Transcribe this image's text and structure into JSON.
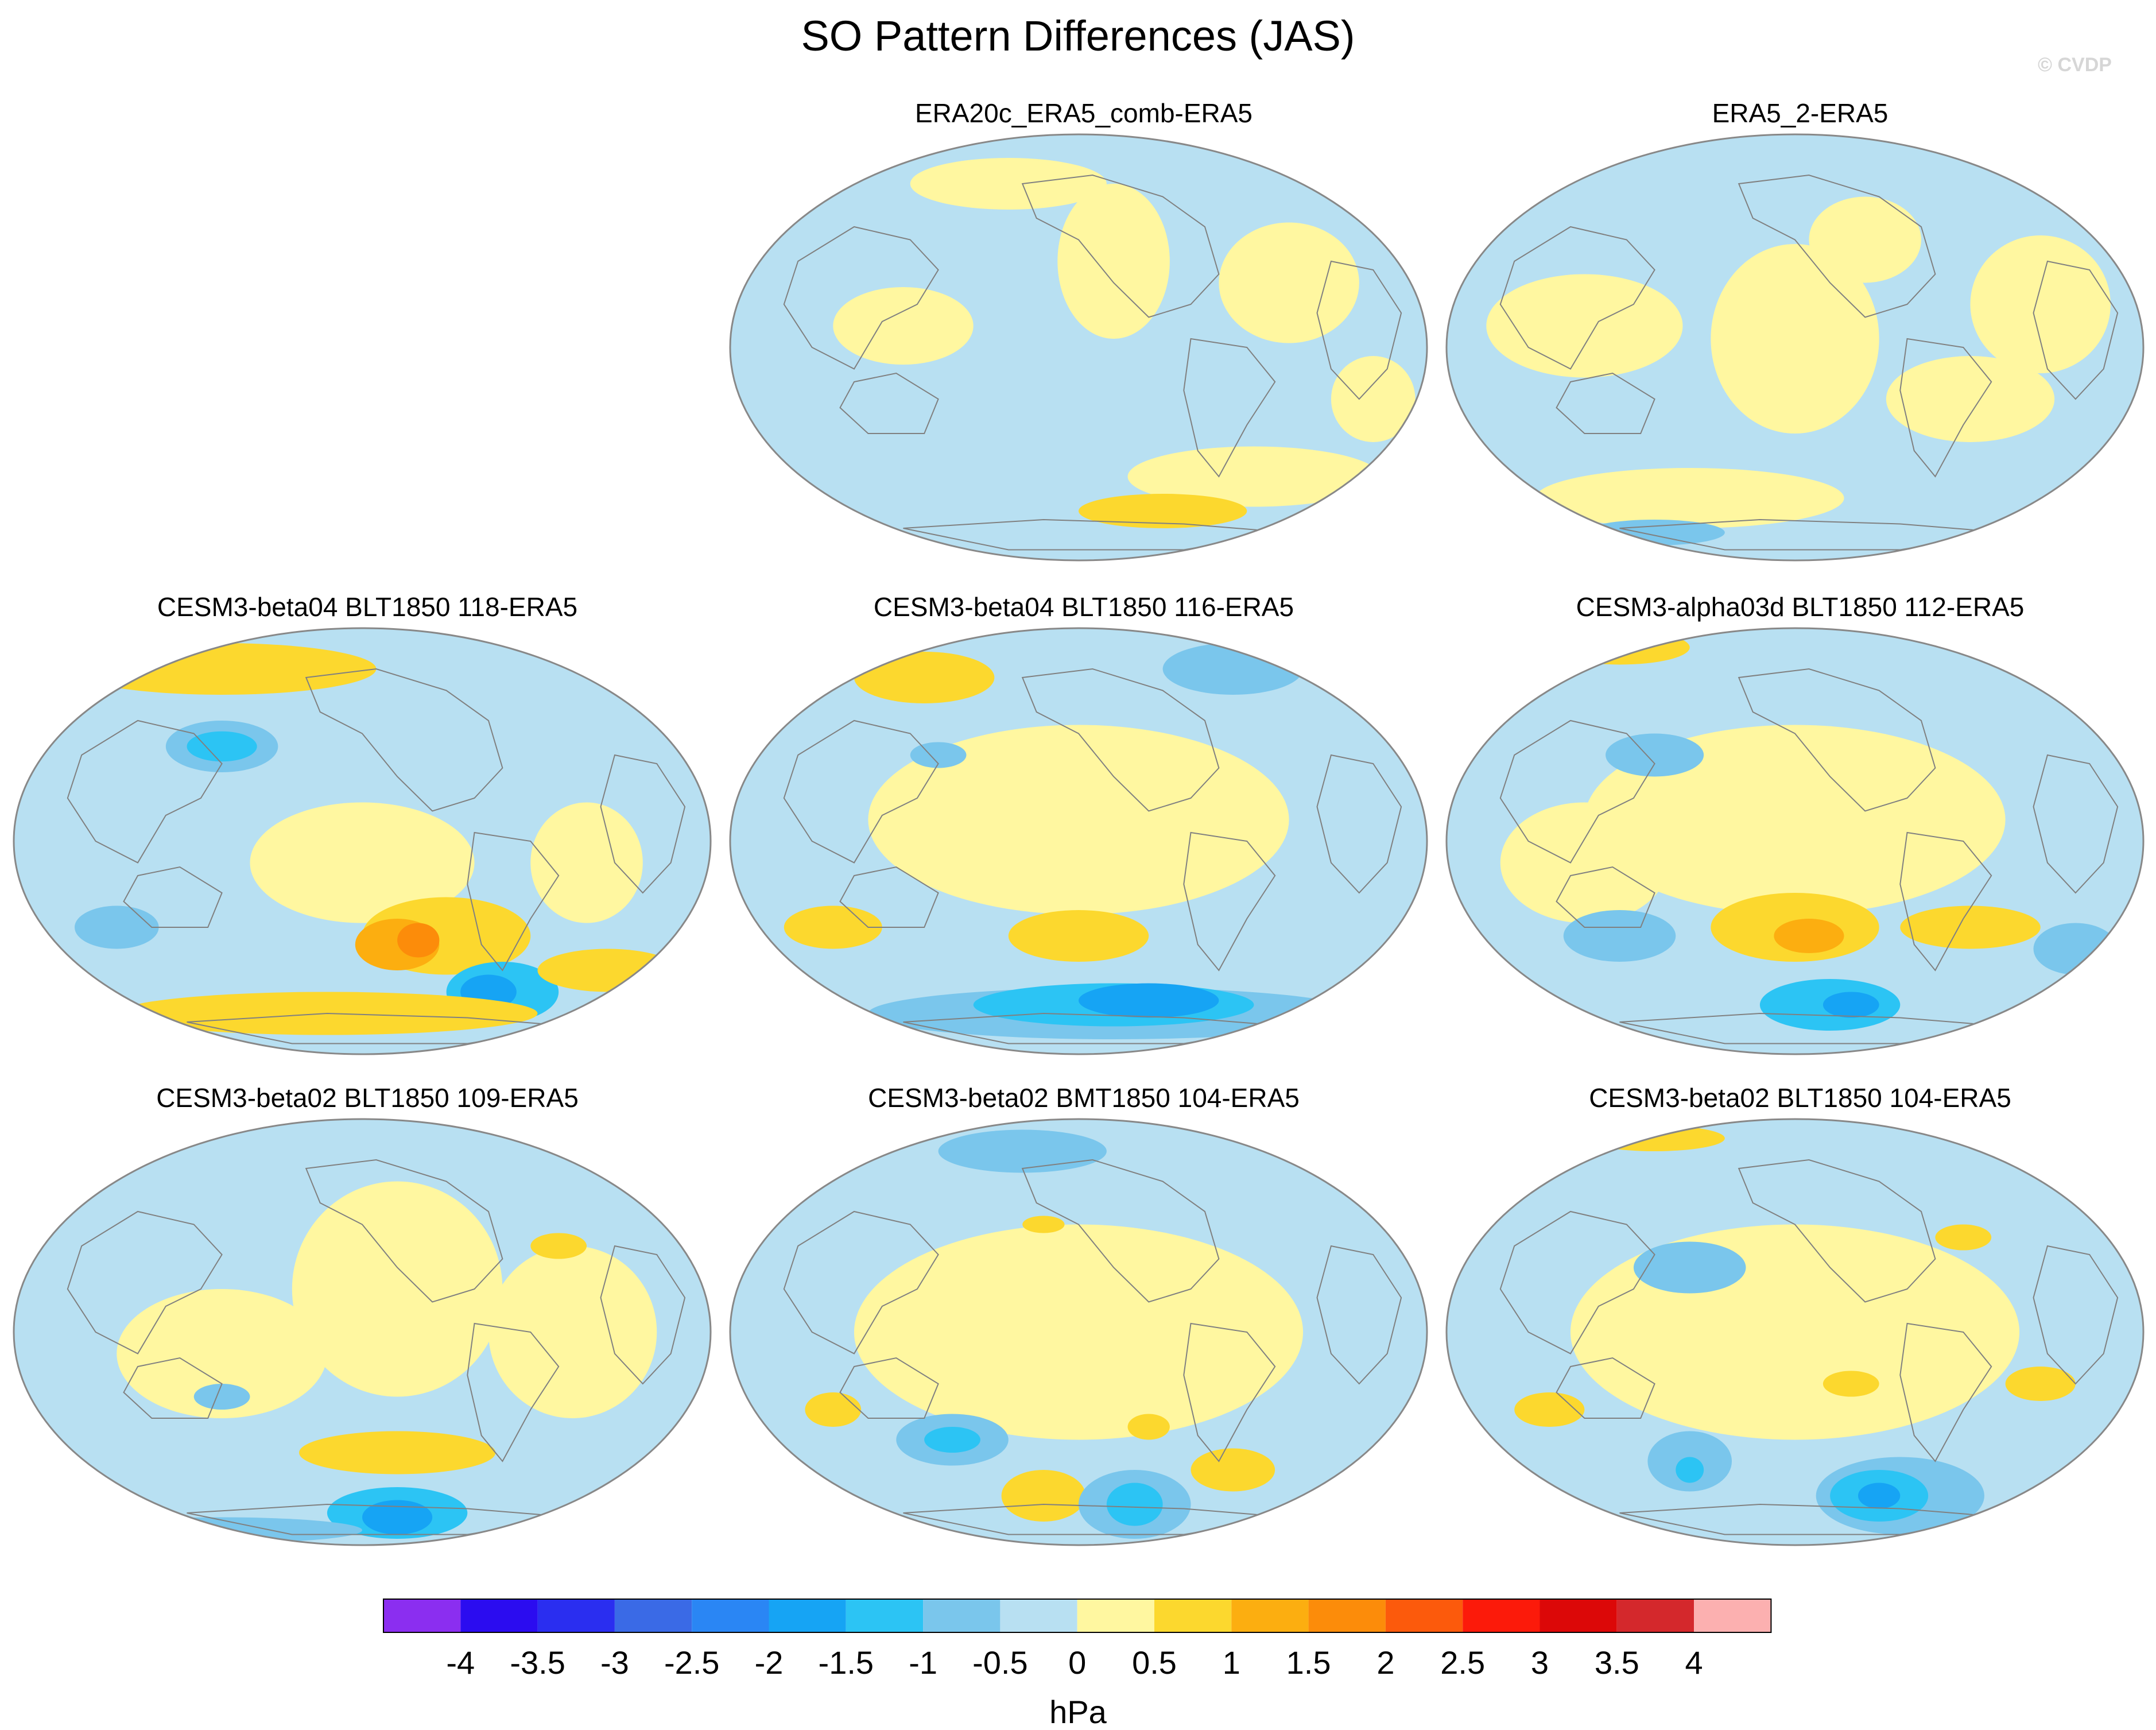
{
  "figure": {
    "title": "SO Pattern Differences (JAS)",
    "watermark": "© CVDP"
  },
  "panels": [
    {
      "title": "ERA20c_ERA5_comb-ERA5",
      "row": 0,
      "col": 1
    },
    {
      "title": "ERA5_2-ERA5",
      "row": 0,
      "col": 2
    },
    {
      "title": "CESM3-beta04 BLT1850 118-ERA5",
      "row": 1,
      "col": 0
    },
    {
      "title": "CESM3-beta04 BLT1850 116-ERA5",
      "row": 1,
      "col": 1
    },
    {
      "title": "CESM3-alpha03d BLT1850 112-ERA5",
      "row": 1,
      "col": 2
    },
    {
      "title": "CESM3-beta02 BLT1850 109-ERA5",
      "row": 2,
      "col": 0
    },
    {
      "title": "CESM3-beta02 BMT1850 104-ERA5",
      "row": 2,
      "col": 1
    },
    {
      "title": "CESM3-beta02 BLT1850 104-ERA5",
      "row": 2,
      "col": 2
    }
  ],
  "colorbar": {
    "units": "hPa",
    "tick_labels": [
      "-4",
      "-3.5",
      "-3",
      "-2.5",
      "-2",
      "-1.5",
      "-1",
      "-0.5",
      "0",
      "0.5",
      "1",
      "1.5",
      "2",
      "2.5",
      "3",
      "3.5",
      "4"
    ],
    "colors": [
      "#8b2ef0",
      "#2b0cf0",
      "#2a2ef0",
      "#3a6ae6",
      "#2a86f4",
      "#16a4f4",
      "#2cc4f4",
      "#7ac6ec",
      "#b8e0f2",
      "#fff7a0",
      "#fcd82e",
      "#fcae10",
      "#fc8c0a",
      "#fc5a0c",
      "#fc1a0a",
      "#dc0808",
      "#d4282c",
      "#fcb0b0"
    ]
  },
  "color_roles": {
    "ocean_negative_small": "#b8e0f2",
    "positive_small": "#fff7a0",
    "coastline": "#808080",
    "map_outline": "#888888"
  },
  "chart_data": {
    "type": "heatmap",
    "title": "SO Pattern Differences (JAS)",
    "colorbar_label": "hPa",
    "levels": [
      -4,
      -3.5,
      -3,
      -2.5,
      -2,
      -1.5,
      -1,
      -0.5,
      0,
      0.5,
      1,
      1.5,
      2,
      2.5,
      3,
      3.5,
      4
    ],
    "projection": "global elliptical (Robinson-like), Pacific-centered",
    "panels": [
      "ERA20c_ERA5_comb-ERA5",
      "ERA5_2-ERA5",
      "CESM3-beta04 BLT1850 118-ERA5",
      "CESM3-beta04 BLT1850 116-ERA5",
      "CESM3-alpha03d BLT1850 112-ERA5",
      "CESM3-beta02 BLT1850 109-ERA5",
      "CESM3-beta02 BMT1850 104-ERA5",
      "CESM3-beta02 BLT1850 104-ERA5"
    ]
  }
}
